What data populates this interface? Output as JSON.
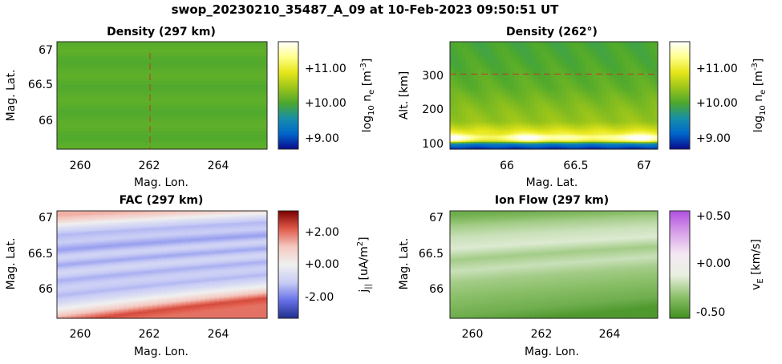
{
  "figure_title": "swop_20230210_35487_A_09 at 10-Feb-2023 09:50:51 UT",
  "colors": {
    "density_colormap": [
      "#0a0a8c",
      "#0066cc",
      "#178fa8",
      "#4ca82e",
      "#9cc51a",
      "#e6e61a",
      "#ffff8c",
      "#ffffff"
    ],
    "fac_colormap": [
      "#1f2f8c",
      "#6670e8",
      "#c8ccf5",
      "#f0f0f0",
      "#f4c8c0",
      "#e05a4a",
      "#7a0000"
    ],
    "flow_colormap": [
      "#3f8f1f",
      "#8cc06a",
      "#e8f0e0",
      "#f4e8f4",
      "#d8a0e8",
      "#b050e0"
    ],
    "cut_line": "#c0392b"
  },
  "panels": {
    "p1": {
      "title": "Density (297 km)",
      "xlabel": "Mag. Lon.",
      "ylabel": "Mag. Lat.",
      "xticks": [
        "260",
        "262",
        "264"
      ],
      "yticks": [
        "67",
        "66.5",
        "66"
      ],
      "cbar_ticks": [
        "+11.00",
        "+10.00",
        "+9.00"
      ],
      "cbar_label": "log",
      "cbar_label_sub": "10",
      "cbar_label_mid": " n",
      "cbar_label_sub2": "e",
      "cbar_label_unit": " [m",
      "cbar_label_sup": "-3",
      "cbar_label_end": "]"
    },
    "p2": {
      "title": "Density (262°)",
      "xlabel": "Mag. Lat.",
      "ylabel": "Alt. [km]",
      "xticks": [
        "66",
        "66.5",
        "67"
      ],
      "yticks": [
        "300",
        "200",
        "100"
      ],
      "cbar_ticks": [
        "+11.00",
        "+10.00",
        "+9.00"
      ],
      "cbar_label": "log",
      "cbar_label_sub": "10",
      "cbar_label_mid": " n",
      "cbar_label_sub2": "e",
      "cbar_label_unit": " [m",
      "cbar_label_sup": "-3",
      "cbar_label_end": "]"
    },
    "p3": {
      "title": "FAC (297 km)",
      "xlabel": "Mag. Lon.",
      "ylabel": "Mag. Lat.",
      "xticks": [
        "260",
        "262",
        "264"
      ],
      "yticks": [
        "67",
        "66.5",
        "66"
      ],
      "cbar_ticks": [
        "+2.00",
        "+0.00",
        "-2.00"
      ],
      "cbar_label": "j",
      "cbar_label_sub": "||",
      "cbar_label_unit": " [uA/m",
      "cbar_label_sup": "2",
      "cbar_label_end": "]"
    },
    "p4": {
      "title": "Ion Flow (297 km)",
      "xlabel": "Mag. Lon.",
      "ylabel": "Mag. Lat.",
      "xticks": [
        "260",
        "262",
        "264"
      ],
      "yticks": [
        "67",
        "66.5",
        "66"
      ],
      "cbar_ticks": [
        "+0.50",
        "+0.00",
        "-0.50"
      ],
      "cbar_label": "v",
      "cbar_label_sub": "E",
      "cbar_label_unit": " [km/s]"
    }
  },
  "chart_data": [
    {
      "type": "heatmap",
      "title": "Density (297 km)",
      "xlabel": "Mag. Lon.",
      "ylabel": "Mag. Lat.",
      "xlim": [
        259.3,
        265.4
      ],
      "ylim": [
        65.6,
        67.1
      ],
      "clim": [
        8.7,
        11.7
      ],
      "field_value": 10.05,
      "cut_line_x": 262
    },
    {
      "type": "heatmap",
      "title": "Density (262°)",
      "xlabel": "Mag. Lat.",
      "ylabel": "Alt. [km]",
      "xlim": [
        65.55,
        67.08
      ],
      "ylim": [
        80,
        395
      ],
      "clim": [
        8.7,
        11.7
      ],
      "profile_altitudes": [
        80,
        95,
        105,
        115,
        125,
        140,
        160,
        200,
        260,
        330,
        395
      ],
      "profile_values": [
        8.8,
        9.4,
        11.2,
        11.5,
        11.0,
        10.7,
        10.4,
        10.3,
        10.1,
        10.0,
        9.95
      ],
      "cut_line_y": 300
    },
    {
      "type": "heatmap",
      "title": "FAC (297 km)",
      "xlabel": "Mag. Lon.",
      "ylabel": "Mag. Lat.",
      "xlim": [
        259.3,
        265.4
      ],
      "ylim": [
        65.6,
        67.1
      ],
      "clim": [
        -3.2,
        3.2
      ],
      "lat_profile_at_lon_262": [
        [
          65.6,
          1.9
        ],
        [
          65.7,
          2.3
        ],
        [
          65.78,
          1.2
        ],
        [
          65.86,
          0.2
        ],
        [
          65.95,
          -0.6
        ],
        [
          66.05,
          -1.3
        ],
        [
          66.15,
          -0.9
        ],
        [
          66.25,
          -1.4
        ],
        [
          66.35,
          -0.7
        ],
        [
          66.45,
          -1.5
        ],
        [
          66.55,
          -0.8
        ],
        [
          66.65,
          -1.6
        ],
        [
          66.75,
          -1.0
        ],
        [
          66.85,
          -1.3
        ],
        [
          66.95,
          -0.4
        ],
        [
          67.05,
          0.9
        ],
        [
          67.1,
          1.3
        ]
      ]
    },
    {
      "type": "heatmap",
      "title": "Ion Flow (297 km)",
      "xlabel": "Mag. Lon.",
      "ylabel": "Mag. Lat.",
      "xlim": [
        259.3,
        265.4
      ],
      "ylim": [
        65.6,
        67.1
      ],
      "clim": [
        -0.6,
        0.6
      ],
      "lat_profile_at_lon_262": [
        [
          65.6,
          -0.55
        ],
        [
          65.75,
          -0.45
        ],
        [
          65.9,
          -0.4
        ],
        [
          66.05,
          -0.35
        ],
        [
          66.2,
          -0.3
        ],
        [
          66.35,
          -0.2
        ],
        [
          66.5,
          -0.3
        ],
        [
          66.65,
          -0.15
        ],
        [
          66.8,
          -0.2
        ],
        [
          66.95,
          -0.3
        ],
        [
          67.1,
          -0.45
        ]
      ]
    }
  ]
}
